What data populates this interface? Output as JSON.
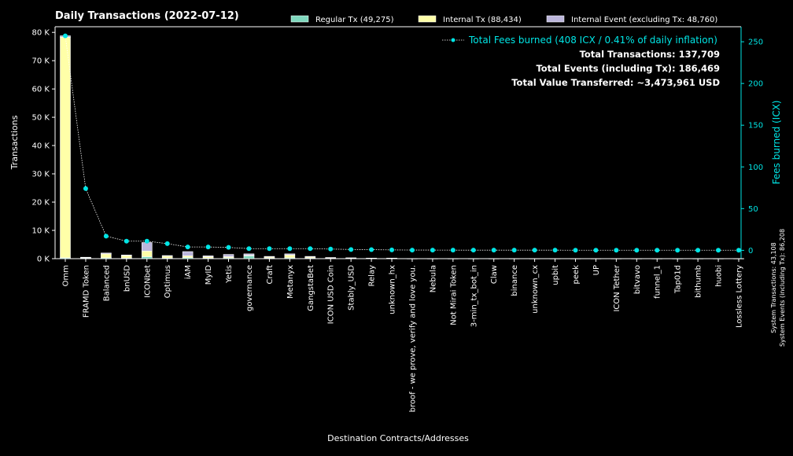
{
  "chart_data": {
    "type": "bar",
    "title": "Daily Transactions (2022-07-12)",
    "xlabel": "Destination Contracts/Addresses",
    "ylabel": "Transactions",
    "y2label": "Fees burned (ICX)",
    "ylim": [
      0,
      82000
    ],
    "y2lim": [
      -10,
      268
    ],
    "yticks": [
      0,
      10000,
      20000,
      30000,
      40000,
      50000,
      60000,
      70000,
      80000
    ],
    "ytick_labels": [
      "0 K",
      "10 K",
      "20 K",
      "30 K",
      "40 K",
      "50 K",
      "60 K",
      "70 K",
      "80 K"
    ],
    "y2ticks": [
      0,
      50,
      100,
      150,
      200,
      250
    ],
    "y2tick_labels": [
      "0",
      "50",
      "100",
      "150",
      "200",
      "250"
    ],
    "categories": [
      "Omm",
      "FRAMD Token",
      "Balanced",
      "bnUSD",
      "ICONbet",
      "Optimus",
      "iAM",
      "MyID",
      "Yetis",
      "governance",
      "Craft",
      "Metanyx",
      "GangstaBet",
      "ICON USD Coin",
      "Stably_USD",
      "Relay",
      "unknown_hx",
      "broof - we prove, verify and love you.",
      "Nebula",
      "Not Mirai Token",
      "3-min_tx_bot_in",
      "Claw",
      "binance",
      "unknown_cx",
      "upbit",
      "peek",
      "UP",
      "ICON Tether",
      "bitvavo",
      "funnel_1",
      "Tap01d",
      "bithumb",
      "huobi",
      "Lossless Lottery"
    ],
    "series": [
      {
        "name": "Regular Tx (49,275)",
        "color": "#7fd8be",
        "values": [
          300,
          200,
          300,
          200,
          700,
          200,
          400,
          200,
          300,
          1000,
          200,
          300,
          200,
          150,
          100,
          100,
          100,
          50,
          50,
          50,
          50,
          50,
          50,
          50,
          50,
          50,
          50,
          50,
          50,
          50,
          50,
          50,
          50,
          50
        ]
      },
      {
        "name": "Internal Tx (88,434)",
        "color": "#ffffa8",
        "values": [
          78000,
          200,
          1400,
          900,
          2000,
          700,
          600,
          500,
          400,
          200,
          400,
          1000,
          400,
          150,
          100,
          50,
          50,
          0,
          0,
          0,
          0,
          0,
          0,
          0,
          0,
          0,
          0,
          0,
          0,
          0,
          0,
          0,
          0,
          0
        ]
      },
      {
        "name": "Internal Event (excluding Tx: 48,760)",
        "color": "#bcb6dc",
        "values": [
          500,
          100,
          300,
          200,
          3000,
          200,
          1500,
          300,
          800,
          500,
          200,
          400,
          200,
          100,
          100,
          50,
          50,
          0,
          0,
          0,
          0,
          0,
          0,
          0,
          0,
          0,
          0,
          0,
          0,
          0,
          0,
          0,
          0,
          0
        ]
      }
    ],
    "fees": {
      "name": "Total Fees burned (408 ICX / 0.41% of daily inflation)",
      "color": "#00e5e5",
      "values": [
        257,
        74,
        17,
        11,
        11,
        8,
        4,
        4,
        3.5,
        2,
        2,
        2,
        2,
        1.5,
        1,
        0.8,
        0.5,
        0.3,
        0.3,
        0.2,
        0.2,
        0.2,
        0.2,
        0.2,
        0.2,
        0.1,
        0.1,
        0.1,
        0.1,
        0.1,
        0.1,
        0.1,
        0.1,
        0.1
      ]
    },
    "info_lines": [
      "Total Transactions: 137,709",
      "Total Events (including Tx): 186,469",
      "Total Value Transferred: ~3,473,961 USD"
    ],
    "side_notes": [
      "System Transactions: 43,108",
      "System Events (including Tx): 86,208"
    ],
    "legend_position": "top",
    "grid": false
  }
}
